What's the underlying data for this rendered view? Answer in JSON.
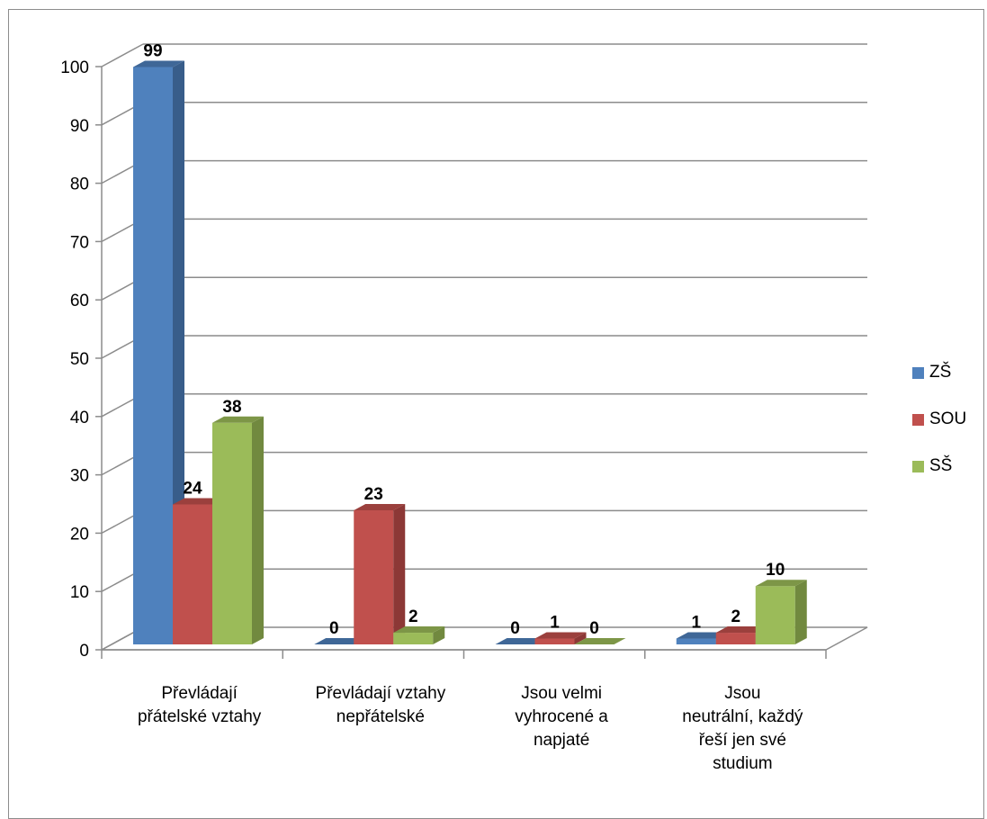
{
  "chart_data": {
    "type": "bar",
    "title": "",
    "xlabel": "",
    "ylabel": "",
    "ylim": [
      0,
      100
    ],
    "yticks": [
      0,
      10,
      20,
      30,
      40,
      50,
      60,
      70,
      80,
      90,
      100
    ],
    "categories": [
      [
        "Převládají",
        "přátelské vztahy"
      ],
      [
        "Převládají vztahy",
        "nepřátelské"
      ],
      [
        "Jsou velmi",
        "vyhrocené a",
        "napjaté"
      ],
      [
        "Jsou",
        "neutrální, každý",
        "řeší jen své",
        "studium"
      ]
    ],
    "series": [
      {
        "name": "ZŠ",
        "values": [
          99,
          0,
          0,
          1
        ],
        "color": "#4f81bd",
        "side_color": "#385d8a",
        "top_color": "#3f6797"
      },
      {
        "name": "SOU",
        "values": [
          24,
          23,
          1,
          2
        ],
        "color": "#c0504d",
        "side_color": "#8c3836",
        "top_color": "#9b403d"
      },
      {
        "name": "SŠ",
        "values": [
          38,
          2,
          0,
          10
        ],
        "color": "#9bbb59",
        "side_color": "#71893f",
        "top_color": "#7d9647"
      }
    ],
    "data_labels": true,
    "grid": true,
    "legend_position": "right"
  }
}
